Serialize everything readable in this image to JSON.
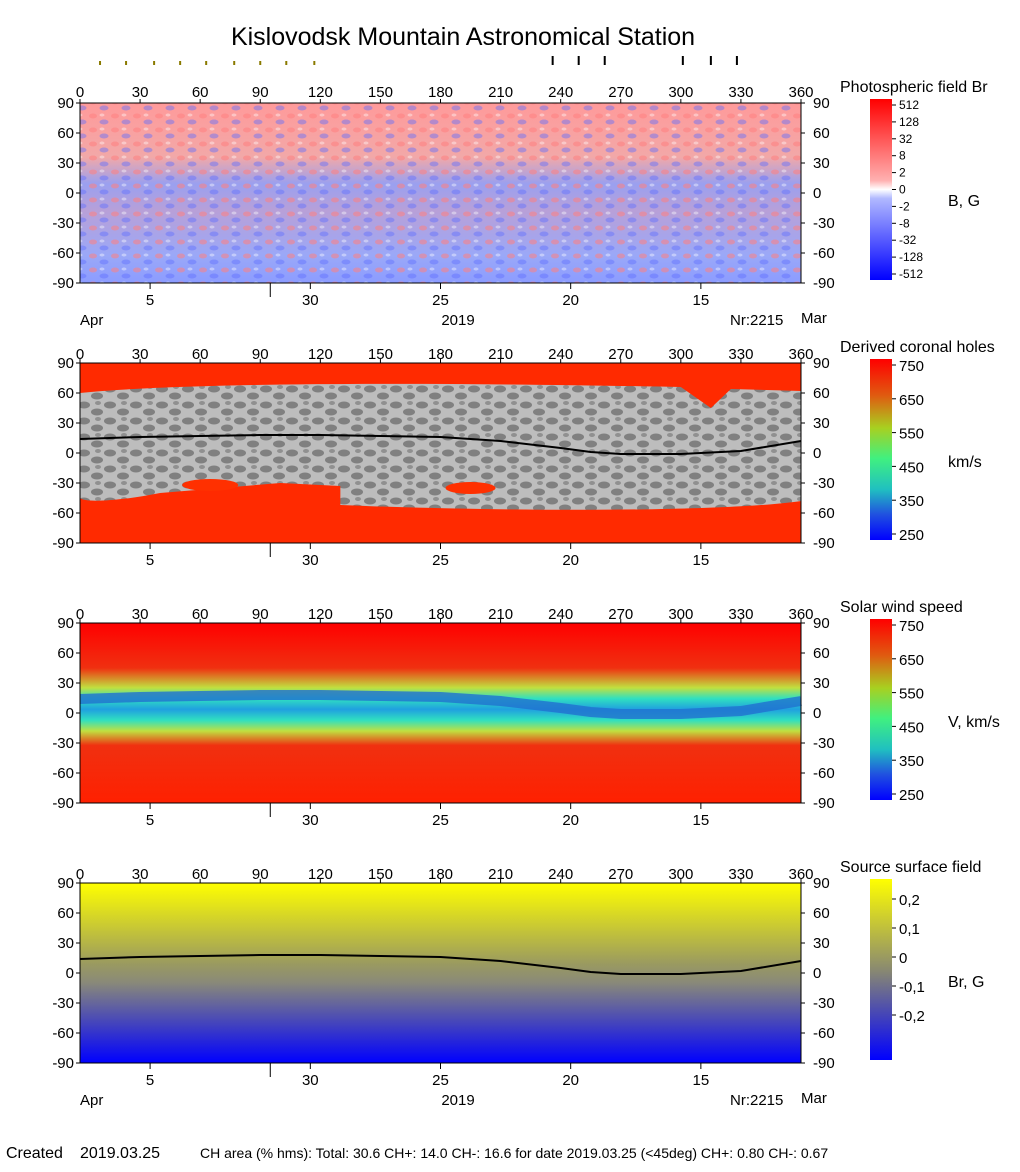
{
  "page": {
    "title": "Kislovodsk Mountain Astronomical Station",
    "footer": {
      "created_label": "Created",
      "created_date": "2019.03.25",
      "ch_area": "CH area (% hms): Total: 30.6 CH+: 14.0   CH-: 16.6 for date 2019.03.25 (<45deg) CH+: 0.80    CH-: 0.67"
    }
  },
  "chart_data": [
    {
      "type": "heatmap",
      "title": "Photospheric field Br",
      "colorbar_label": "B, G",
      "colorbar_ticks": [
        "512",
        "128",
        "32",
        "8",
        "2",
        "0",
        "-2",
        "-8",
        "-32",
        "-128",
        "-512"
      ],
      "x_ticks": [
        "0",
        "30",
        "60",
        "90",
        "120",
        "150",
        "180",
        "210",
        "240",
        "270",
        "300",
        "330",
        "360"
      ],
      "y_ticks": [
        "90",
        "60",
        "30",
        "0",
        "-30",
        "-60",
        "-90"
      ],
      "xlim": [
        0,
        360
      ],
      "ylim": [
        -90,
        90
      ],
      "date_ticks": [
        {
          "lon": 35,
          "label": "5"
        },
        {
          "lon": 95,
          "label": ""
        },
        {
          "lon": 115,
          "label": "30"
        },
        {
          "lon": 180,
          "label": "25"
        },
        {
          "lon": 245,
          "label": "20"
        },
        {
          "lon": 310,
          "label": "15"
        }
      ],
      "date_axis": {
        "left_month": "Apr",
        "year": "2019",
        "carrington": "Nr:2215",
        "right_month": "Mar"
      },
      "markers": {
        "minor_lon": [
          10,
          23,
          37,
          50,
          63,
          77,
          90,
          103,
          117
        ],
        "major_lon": [
          236,
          249,
          262,
          301,
          315,
          328
        ]
      }
    },
    {
      "type": "heatmap",
      "title": "Derived coronal holes",
      "colorbar_label": "km/s",
      "colorbar_ticks": [
        "750",
        "650",
        "550",
        "450",
        "350",
        "250"
      ],
      "range": [
        250,
        750
      ],
      "x_ticks": [
        "0",
        "30",
        "60",
        "90",
        "120",
        "150",
        "180",
        "210",
        "240",
        "270",
        "300",
        "330",
        "360"
      ],
      "y_ticks": [
        "90",
        "60",
        "30",
        "0",
        "-30",
        "-60",
        "-90"
      ],
      "date_ticks": [
        {
          "lon": 35,
          "label": "5"
        },
        {
          "lon": 95,
          "label": ""
        },
        {
          "lon": 115,
          "label": "30"
        },
        {
          "lon": 180,
          "label": "25"
        },
        {
          "lon": 245,
          "label": "20"
        },
        {
          "lon": 310,
          "label": "15"
        }
      ],
      "neutral_line": {
        "lon": [
          0,
          30,
          60,
          90,
          120,
          150,
          180,
          210,
          240,
          255,
          270,
          300,
          330,
          360
        ],
        "lat": [
          14,
          16,
          17,
          18,
          18,
          17,
          16,
          12,
          5,
          1,
          -1,
          -1,
          2,
          12
        ]
      }
    },
    {
      "type": "heatmap",
      "title": "Solar wind speed",
      "colorbar_label": "V, km/s",
      "colorbar_ticks": [
        "750",
        "650",
        "550",
        "450",
        "350",
        "250"
      ],
      "range": [
        250,
        750
      ],
      "x_ticks": [
        "0",
        "30",
        "60",
        "90",
        "120",
        "150",
        "180",
        "210",
        "240",
        "270",
        "300",
        "330",
        "360"
      ],
      "y_ticks": [
        "90",
        "60",
        "30",
        "0",
        "-30",
        "-60",
        "-90"
      ],
      "date_ticks": [
        {
          "lon": 35,
          "label": "5"
        },
        {
          "lon": 95,
          "label": ""
        },
        {
          "lon": 115,
          "label": "30"
        },
        {
          "lon": 180,
          "label": "25"
        },
        {
          "lon": 245,
          "label": "20"
        },
        {
          "lon": 310,
          "label": "15"
        }
      ]
    },
    {
      "type": "heatmap",
      "title": "Source surface field",
      "colorbar_label": "Br, G",
      "colorbar_ticks": [
        "0,2",
        "0,1",
        "0",
        "-0,1",
        "-0,2"
      ],
      "x_ticks": [
        "0",
        "30",
        "60",
        "90",
        "120",
        "150",
        "180",
        "210",
        "240",
        "270",
        "300",
        "330",
        "360"
      ],
      "y_ticks": [
        "90",
        "60",
        "30",
        "0",
        "-30",
        "-60",
        "-90"
      ],
      "date_ticks": [
        {
          "lon": 35,
          "label": "5"
        },
        {
          "lon": 95,
          "label": ""
        },
        {
          "lon": 115,
          "label": "30"
        },
        {
          "lon": 180,
          "label": "25"
        },
        {
          "lon": 245,
          "label": "20"
        },
        {
          "lon": 310,
          "label": "15"
        }
      ],
      "date_axis": {
        "left_month": "Apr",
        "year": "2019",
        "carrington": "Nr:2215",
        "right_month": "Mar"
      },
      "neutral_line": {
        "lon": [
          0,
          30,
          60,
          90,
          120,
          150,
          180,
          210,
          240,
          255,
          270,
          300,
          330,
          360
        ],
        "lat": [
          14,
          16,
          17,
          18,
          18,
          17,
          16,
          12,
          5,
          1,
          -1,
          -1,
          2,
          12
        ]
      }
    }
  ]
}
